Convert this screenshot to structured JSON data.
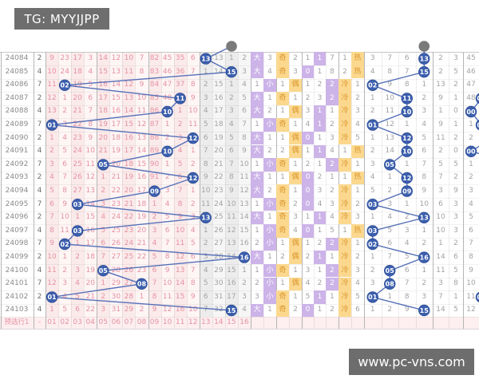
{
  "header": {
    "tg_label": "TG: MYYJJPP"
  },
  "watermark": {
    "site_label": "www.pc-vns.com"
  },
  "footer": {
    "row_label": "预选行1",
    "dash": "-",
    "ball_labels": [
      "01",
      "02",
      "03",
      "04",
      "05",
      "06",
      "07",
      "08",
      "09",
      "10",
      "11",
      "12",
      "13",
      "14",
      "15",
      "16"
    ]
  },
  "colors": {
    "circle_blue": "#3c5fae",
    "line_blue": "#5570b8",
    "prev_gray": "#7a7a7a",
    "lavender": "#ccb3e8",
    "amber": "#fbd88e",
    "pink_text": "#e593a2",
    "banner_gray": "#6e6e6e"
  },
  "chart_data": {
    "type": "table",
    "legend": [
      "大",
      "小",
      "奇",
      "偶",
      "热",
      "冷"
    ],
    "rows": [
      {
        "p": "24084",
        "x": "2",
        "b": [
          "9",
          "23",
          "17",
          "3",
          "14",
          "12",
          "10",
          "7",
          "82",
          "45",
          "35",
          "6",
          "13",
          "13",
          "1",
          "2"
        ],
        "h": 12,
        "bs": [
          "大",
          "3"
        ],
        "oe": [
          "奇",
          "2"
        ],
        "pa": [
          "1",
          "1",
          "7"
        ],
        "ph": 1,
        "hc": [
          "1",
          "热"
        ],
        "q": [
          "3",
          "7",
          "6",
          "13"
        ],
        "qh": 3,
        "sp": "2",
        "tl": "3",
        "t0": "45",
        "t0h": false
      },
      {
        "p": "24085",
        "x": "4",
        "b": [
          "10",
          "24",
          "18",
          "4",
          "15",
          "13",
          "11",
          "8",
          "83",
          "46",
          "36",
          "7",
          "1",
          "14",
          "15",
          "3"
        ],
        "h": 14,
        "bs": [
          "大",
          "4"
        ],
        "oe": [
          "奇",
          "3"
        ],
        "pa": [
          "0",
          "1",
          "8"
        ],
        "ph": 0,
        "hc": [
          "2",
          "热"
        ],
        "q": [
          "4",
          "8",
          "7",
          "15"
        ],
        "qh": 3,
        "sp": "2",
        "tl": "5",
        "t0": "46",
        "t0h": false
      },
      {
        "p": "24086",
        "x": "7",
        "b": [
          "11",
          "02",
          "19",
          "5",
          "16",
          "14",
          "12",
          "9",
          "84",
          "47",
          "37",
          "8",
          "2",
          "15",
          "1",
          "4"
        ],
        "h": 1,
        "bs": [
          "1",
          "小"
        ],
        "oe": [
          "1",
          "偶"
        ],
        "pa": [
          "1",
          "2",
          "2"
        ],
        "ph": 2,
        "hc": [
          "冷",
          "1"
        ],
        "q": [
          "02",
          "9",
          "8",
          "1"
        ],
        "qh": 0,
        "sp": "13",
        "tl": "2",
        "t0": "47",
        "t0h": false
      },
      {
        "p": "24087",
        "x": "2",
        "b": [
          "12",
          "1",
          "20",
          "6",
          "17",
          "15",
          "13",
          "10",
          "85",
          "48",
          "11",
          "9",
          "3",
          "16",
          "2",
          "5"
        ],
        "h": 10,
        "bs": [
          "大",
          "1"
        ],
        "oe": [
          "奇",
          "1"
        ],
        "pa": [
          "2",
          "3",
          "2"
        ],
        "ph": 2,
        "hc": [
          "冷",
          "2"
        ],
        "q": [
          "1",
          "10",
          "11",
          "2"
        ],
        "qh": 2,
        "sp": "9",
        "tl": "1",
        "t0": "48",
        "t0h": false
      },
      {
        "p": "24088",
        "x": "4",
        "b": [
          "13",
          "2",
          "21",
          "7",
          "18",
          "16",
          "14",
          "11",
          "86",
          "10",
          "1",
          "10",
          "4",
          "17",
          "3",
          "6"
        ],
        "h": 9,
        "bs": [
          "大",
          "2"
        ],
        "oe": [
          "1",
          "偶"
        ],
        "pa": [
          "3",
          "1",
          "1"
        ],
        "ph": 1,
        "hc": [
          "冷",
          "3"
        ],
        "q": [
          "2",
          "11",
          "10",
          "3"
        ],
        "qh": 2,
        "sp": "1",
        "tl": "0",
        "t0": "00",
        "t0h": true
      },
      {
        "p": "24089",
        "x": "7",
        "b": [
          "01",
          "3",
          "22",
          "8",
          "19",
          "17",
          "15",
          "12",
          "87",
          "1",
          "2",
          "11",
          "5",
          "18",
          "4",
          "7"
        ],
        "h": 0,
        "bs": [
          "1",
          "小"
        ],
        "oe": [
          "奇",
          "1"
        ],
        "pa": [
          "4",
          "1",
          "2"
        ],
        "ph": 1,
        "hc": [
          "冷",
          "4"
        ],
        "q": [
          "01",
          "12",
          "1",
          "4"
        ],
        "qh": 0,
        "sp": "9",
        "tl": "1",
        "t0": "1",
        "t0h": false
      },
      {
        "p": "24090",
        "x": "2",
        "b": [
          "1",
          "4",
          "23",
          "9",
          "20",
          "18",
          "16",
          "13",
          "88",
          "2",
          "3",
          "12",
          "6",
          "19",
          "5",
          "8"
        ],
        "h": 11,
        "bs": [
          "大",
          "1"
        ],
        "oe": [
          "1",
          "偶"
        ],
        "pa": [
          "0",
          "1",
          "3"
        ],
        "ph": 0,
        "hc": [
          "冷",
          "5"
        ],
        "q": [
          "1",
          "13",
          "12",
          "5"
        ],
        "qh": 2,
        "sp": "11",
        "tl": "2",
        "t0": "2",
        "t0h": false
      },
      {
        "p": "24091",
        "x": "4",
        "b": [
          "2",
          "5",
          "24",
          "10",
          "21",
          "19",
          "17",
          "14",
          "89",
          "10",
          "4",
          "1",
          "7",
          "20",
          "6",
          "9"
        ],
        "h": 9,
        "bs": [
          "大",
          "2"
        ],
        "oe": [
          "2",
          "偶"
        ],
        "pa": [
          "1",
          "1",
          "4"
        ],
        "ph": 1,
        "hc": [
          "1",
          "热"
        ],
        "q": [
          "2",
          "14",
          "10",
          "6"
        ],
        "qh": 2,
        "sp": "2",
        "tl": "0",
        "t0": "00",
        "t0h": true
      },
      {
        "p": "24092",
        "x": "7",
        "b": [
          "3",
          "6",
          "25",
          "11",
          "05",
          "20",
          "18",
          "15",
          "90",
          "1",
          "5",
          "2",
          "8",
          "21",
          "7",
          "10"
        ],
        "h": 4,
        "bs": [
          "1",
          "小"
        ],
        "oe": [
          "奇",
          "1"
        ],
        "pa": [
          "2",
          "1",
          "2"
        ],
        "ph": 2,
        "hc": [
          "冷",
          "1"
        ],
        "q": [
          "3",
          "05",
          "1",
          "7"
        ],
        "qh": 1,
        "sp": "5",
        "tl": "5",
        "t0": "1",
        "t0h": false
      },
      {
        "p": "24093",
        "x": "2",
        "b": [
          "4",
          "7",
          "26",
          "12",
          "1",
          "21",
          "19",
          "16",
          "91",
          "2",
          "6",
          "12",
          "9",
          "22",
          "8",
          "11"
        ],
        "h": 11,
        "bs": [
          "大",
          "1"
        ],
        "oe": [
          "1",
          "偶"
        ],
        "pa": [
          "0",
          "2",
          "1"
        ],
        "ph": 0,
        "hc": [
          "1",
          "热"
        ],
        "q": [
          "4",
          "1",
          "12",
          "8"
        ],
        "qh": 2,
        "sp": "7",
        "tl": "2",
        "t0": "2",
        "t0h": false
      },
      {
        "p": "24094",
        "x": "4",
        "b": [
          "5",
          "8",
          "27",
          "13",
          "2",
          "22",
          "20",
          "17",
          "09",
          "3",
          "7",
          "1",
          "10",
          "23",
          "9",
          "12"
        ],
        "h": 8,
        "bs": [
          "大",
          "2"
        ],
        "oe": [
          "奇",
          "1"
        ],
        "pa": [
          "0",
          "3",
          "2"
        ],
        "ph": 0,
        "hc": [
          "冷",
          "1"
        ],
        "q": [
          "5",
          "2",
          "09",
          "9"
        ],
        "qh": 2,
        "sp": "3",
        "tl": "9",
        "t0": "3",
        "t0h": false
      },
      {
        "p": "24095",
        "x": "7",
        "b": [
          "6",
          "9",
          "03",
          "14",
          "3",
          "23",
          "21",
          "18",
          "1",
          "4",
          "8",
          "2",
          "11",
          "24",
          "10",
          "13"
        ],
        "h": 2,
        "bs": [
          "1",
          "小"
        ],
        "oe": [
          "奇",
          "2"
        ],
        "pa": [
          "0",
          "4",
          "3"
        ],
        "ph": 0,
        "hc": [
          "冷",
          "2"
        ],
        "q": [
          "03",
          "3",
          "1",
          "10"
        ],
        "qh": 0,
        "sp": "6",
        "tl": "3",
        "t0": "4",
        "t0h": false
      },
      {
        "p": "24096",
        "x": "2",
        "b": [
          "7",
          "10",
          "1",
          "15",
          "4",
          "24",
          "22",
          "19",
          "2",
          "5",
          "9",
          "3",
          "13",
          "25",
          "11",
          "14"
        ],
        "h": 12,
        "bs": [
          "大",
          "1"
        ],
        "oe": [
          "奇",
          "3"
        ],
        "pa": [
          "1",
          "1",
          "4"
        ],
        "ph": 1,
        "hc": [
          "冷",
          "3"
        ],
        "q": [
          "1",
          "4",
          "2",
          "13"
        ],
        "qh": 3,
        "sp": "10",
        "tl": "3",
        "t0": "5",
        "t0h": false
      },
      {
        "p": "24097",
        "x": "4",
        "b": [
          "8",
          "11",
          "03",
          "16",
          "5",
          "25",
          "23",
          "20",
          "3",
          "6",
          "10",
          "4",
          "1",
          "26",
          "12",
          "15"
        ],
        "h": 2,
        "bs": [
          "1",
          "小"
        ],
        "oe": [
          "奇",
          "4"
        ],
        "pa": [
          "0",
          "1",
          "5"
        ],
        "ph": 0,
        "hc": [
          "1",
          "热"
        ],
        "q": [
          "03",
          "5",
          "3",
          "1"
        ],
        "qh": 0,
        "sp": "10",
        "tl": "3",
        "t0": "6",
        "t0h": false
      },
      {
        "p": "24098",
        "x": "7",
        "b": [
          "9",
          "02",
          "1",
          "17",
          "6",
          "26",
          "24",
          "21",
          "4",
          "7",
          "11",
          "5",
          "2",
          "27",
          "13",
          "16"
        ],
        "h": 1,
        "bs": [
          "2",
          "小"
        ],
        "oe": [
          "1",
          "偶"
        ],
        "pa": [
          "1",
          "2",
          "2"
        ],
        "ph": 2,
        "hc": [
          "冷",
          "1"
        ],
        "q": [
          "02",
          "6",
          "4",
          "2"
        ],
        "qh": 0,
        "sp": "1",
        "tl": "2",
        "t0": "7",
        "t0h": false
      },
      {
        "p": "24099",
        "x": "2",
        "b": [
          "10",
          "1",
          "2",
          "18",
          "7",
          "27",
          "25",
          "22",
          "5",
          "8",
          "12",
          "6",
          "3",
          "28",
          "14",
          "16"
        ],
        "h": 15,
        "bs": [
          "大",
          "1"
        ],
        "oe": [
          "2",
          "偶"
        ],
        "pa": [
          "2",
          "1",
          "1"
        ],
        "ph": 1,
        "hc": [
          "冷",
          "2"
        ],
        "q": [
          "1",
          "7",
          "5",
          "16"
        ],
        "qh": 3,
        "sp": "14",
        "tl": "6",
        "t0": "8",
        "t0h": false
      },
      {
        "p": "24100",
        "x": "4",
        "b": [
          "11",
          "2",
          "3",
          "19",
          "05",
          "28",
          "26",
          "23",
          "6",
          "9",
          "13",
          "7",
          "4",
          "29",
          "15",
          "1"
        ],
        "h": 4,
        "bs": [
          "1",
          "小"
        ],
        "oe": [
          "奇",
          "1"
        ],
        "pa": [
          "3",
          "1",
          "2"
        ],
        "ph": 2,
        "hc": [
          "冷",
          "3"
        ],
        "q": [
          "2",
          "05",
          "6",
          "1"
        ],
        "qh": 1,
        "sp": "11",
        "tl": "5",
        "t0": "9",
        "t0h": false
      },
      {
        "p": "24101",
        "x": "7",
        "b": [
          "12",
          "3",
          "4",
          "20",
          "1",
          "29",
          "27",
          "08",
          "7",
          "10",
          "14",
          "8",
          "5",
          "30",
          "16",
          "2"
        ],
        "h": 7,
        "bs": [
          "2",
          "小"
        ],
        "oe": [
          "1",
          "偶"
        ],
        "pa": [
          "4",
          "2",
          "2"
        ],
        "ph": 2,
        "hc": [
          "冷",
          "4"
        ],
        "q": [
          "3",
          "08",
          "7",
          "2"
        ],
        "qh": 1,
        "sp": "3",
        "tl": "8",
        "t0": "10",
        "t0h": false
      },
      {
        "p": "24102",
        "x": "2",
        "b": [
          "01",
          "4",
          "5",
          "21",
          "2",
          "30",
          "28",
          "1",
          "8",
          "11",
          "15",
          "9",
          "6",
          "31",
          "17",
          "3"
        ],
        "h": 0,
        "bs": [
          "3",
          "小"
        ],
        "oe": [
          "奇",
          "1"
        ],
        "pa": [
          "5",
          "1",
          "1"
        ],
        "ph": 1,
        "hc": [
          "冷",
          "5"
        ],
        "q": [
          "01",
          "1",
          "8",
          "3"
        ],
        "qh": 0,
        "sp": "7",
        "tl": "1",
        "t0": "11",
        "t0h": false
      },
      {
        "p": "24103",
        "x": "4",
        "b": [
          "1",
          "5",
          "6",
          "22",
          "3",
          "31",
          "29",
          "2",
          "9",
          "12",
          "16",
          "10",
          "7",
          "32",
          "15",
          "4"
        ],
        "h": 14,
        "bs": [
          "大",
          "1"
        ],
        "oe": [
          "奇",
          "2"
        ],
        "pa": [
          "0",
          "1",
          "2"
        ],
        "ph": 0,
        "hc": [
          "冷",
          "6"
        ],
        "q": [
          "1",
          "2",
          "9",
          "15"
        ],
        "qh": 3,
        "sp": "14",
        "tl": "5",
        "t0": "12",
        "t0h": false
      }
    ]
  }
}
